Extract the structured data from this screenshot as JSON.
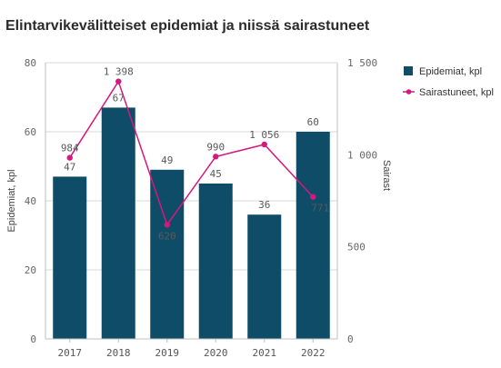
{
  "title": "Elintarvikevälitteiset epidemiat ja niissä sairastuneet",
  "chart_data": {
    "type": "bar",
    "categories": [
      "2017",
      "2018",
      "2019",
      "2020",
      "2021",
      "2022"
    ],
    "series": [
      {
        "name": "Epidemiat, kpl",
        "type": "bar",
        "axis": "left",
        "values": [
          47,
          67,
          49,
          45,
          36,
          60
        ],
        "labels": [
          "47",
          "67",
          "49",
          "45",
          "36",
          "60"
        ],
        "color": "#0f4c68"
      },
      {
        "name": "Sairastuneet, kpl",
        "type": "line",
        "axis": "right",
        "values": [
          984,
          1398,
          620,
          990,
          1056,
          771
        ],
        "labels": [
          "984",
          "1 398",
          "620",
          "990",
          "1 056",
          "771"
        ],
        "color": "#d4187d"
      }
    ],
    "ylabel": "Epidemiat, kpl",
    "y2label": "Sairast",
    "ylim": [
      0,
      80
    ],
    "y2lim": [
      0,
      1500
    ],
    "yticks": [
      "0",
      "20",
      "40",
      "60",
      "80"
    ],
    "y2ticks": [
      "0",
      "500",
      "1 000",
      "1 500"
    ],
    "grid": true,
    "legend_position": "top-right"
  }
}
